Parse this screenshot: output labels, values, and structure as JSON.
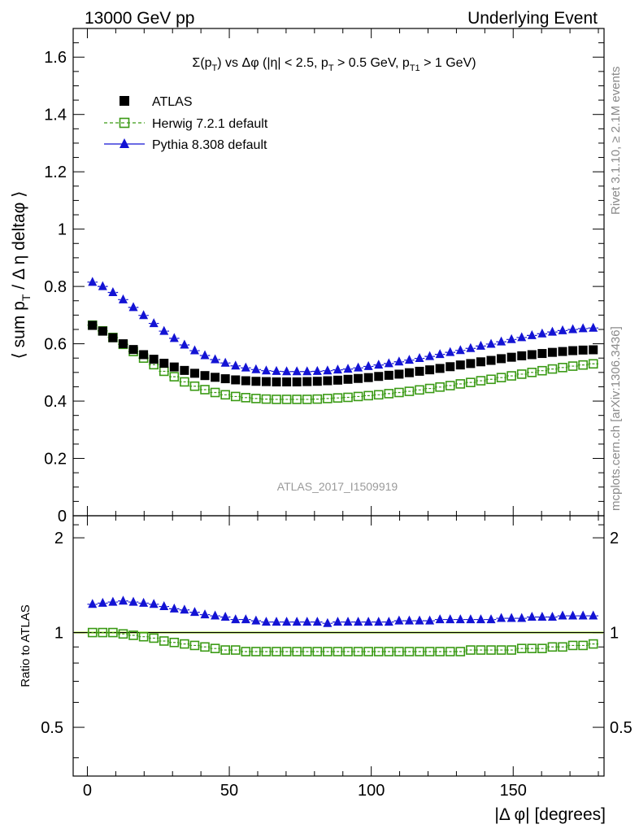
{
  "header": {
    "left": "13000 GeV pp",
    "right": "Underlying Event"
  },
  "side_labels": {
    "rivet": "Rivet 3.1.10, ≥ 2.1M events",
    "mcplots": "mcplots.cern.ch [arXiv:1306.3436]"
  },
  "watermark": "ATLAS_2017_I1509919",
  "chart_data": [
    {
      "type": "scatter",
      "title": "Σ(pT) vs Δφ (|η| < 2.5, pT > 0.5 GeV, pT1 > 1 GeV)",
      "ylabel": "⟨ sum pT / Δη deltaφ ⟩",
      "xlabel": "",
      "xlim": [
        -5,
        182
      ],
      "ylim": [
        0,
        1.7
      ],
      "yticks": [
        0,
        0.2,
        0.4,
        0.6,
        0.8,
        1,
        1.2,
        1.4,
        1.6
      ],
      "ytick_labels": [
        "0",
        "0.2",
        "0.4",
        "0.6",
        "0.8",
        "1",
        "1.2",
        "1.4",
        "1.6"
      ],
      "legend_position": "top-left",
      "x": [
        1.8,
        5.4,
        9.0,
        12.6,
        16.2,
        19.8,
        23.4,
        27.0,
        30.6,
        34.2,
        37.8,
        41.4,
        45.0,
        48.6,
        52.2,
        55.8,
        59.4,
        63.0,
        66.6,
        70.2,
        73.8,
        77.4,
        81.0,
        84.6,
        88.2,
        91.8,
        95.4,
        99.0,
        102.6,
        106.2,
        109.8,
        113.4,
        117.0,
        120.6,
        124.2,
        127.8,
        131.4,
        135.0,
        138.6,
        142.2,
        145.8,
        149.4,
        153.0,
        156.6,
        160.2,
        163.8,
        167.4,
        171.0,
        174.6,
        178.2
      ],
      "series": [
        {
          "name": "ATLAS",
          "color": "#000000",
          "marker": "filled-square",
          "values": [
            0.664,
            0.644,
            0.621,
            0.6,
            0.58,
            0.562,
            0.546,
            0.532,
            0.519,
            0.507,
            0.497,
            0.489,
            0.483,
            0.478,
            0.474,
            0.471,
            0.469,
            0.468,
            0.467,
            0.467,
            0.467,
            0.468,
            0.469,
            0.471,
            0.473,
            0.476,
            0.479,
            0.482,
            0.486,
            0.49,
            0.494,
            0.499,
            0.504,
            0.509,
            0.514,
            0.52,
            0.526,
            0.531,
            0.537,
            0.542,
            0.548,
            0.553,
            0.558,
            0.562,
            0.566,
            0.57,
            0.573,
            0.576,
            0.578,
            0.579
          ]
        },
        {
          "name": "Herwig 7.2.1 default",
          "color": "#3a9a14",
          "marker": "open-square",
          "values": [
            0.665,
            0.645,
            0.622,
            0.598,
            0.573,
            0.55,
            0.527,
            0.504,
            0.485,
            0.467,
            0.452,
            0.44,
            0.43,
            0.422,
            0.416,
            0.412,
            0.409,
            0.407,
            0.406,
            0.406,
            0.406,
            0.406,
            0.407,
            0.409,
            0.411,
            0.413,
            0.416,
            0.419,
            0.422,
            0.426,
            0.43,
            0.434,
            0.439,
            0.444,
            0.449,
            0.454,
            0.46,
            0.465,
            0.471,
            0.476,
            0.482,
            0.488,
            0.494,
            0.5,
            0.506,
            0.512,
            0.517,
            0.522,
            0.526,
            0.53
          ]
        },
        {
          "name": "Pythia 8.308 default",
          "color": "#1313d4",
          "marker": "filled-triangle",
          "values": [
            0.815,
            0.8,
            0.779,
            0.754,
            0.727,
            0.699,
            0.671,
            0.644,
            0.619,
            0.596,
            0.576,
            0.559,
            0.545,
            0.533,
            0.523,
            0.516,
            0.51,
            0.506,
            0.504,
            0.503,
            0.503,
            0.503,
            0.504,
            0.506,
            0.509,
            0.512,
            0.516,
            0.521,
            0.526,
            0.531,
            0.537,
            0.543,
            0.549,
            0.556,
            0.563,
            0.57,
            0.577,
            0.584,
            0.592,
            0.599,
            0.607,
            0.615,
            0.622,
            0.629,
            0.635,
            0.641,
            0.646,
            0.65,
            0.653,
            0.655
          ]
        }
      ]
    },
    {
      "type": "scatter",
      "title": "",
      "ylabel": "Ratio to ATLAS",
      "xlabel": "|Δ φ| [degrees]",
      "xlim": [
        -5,
        182
      ],
      "ylim": [
        0.35,
        2.35
      ],
      "yscale": "log",
      "yticks": [
        0.5,
        1,
        2
      ],
      "ytick_labels": [
        "0.5",
        "1",
        "2"
      ],
      "xticks": [
        0,
        50,
        100,
        150
      ],
      "xtick_labels": [
        "0",
        "50",
        "100",
        "150"
      ],
      "reference_band": {
        "value": 1,
        "color": "#c8f07a"
      },
      "x": [
        1.8,
        5.4,
        9.0,
        12.6,
        16.2,
        19.8,
        23.4,
        27.0,
        30.6,
        34.2,
        37.8,
        41.4,
        45.0,
        48.6,
        52.2,
        55.8,
        59.4,
        63.0,
        66.6,
        70.2,
        73.8,
        77.4,
        81.0,
        84.6,
        88.2,
        91.8,
        95.4,
        99.0,
        102.6,
        106.2,
        109.8,
        113.4,
        117.0,
        120.6,
        124.2,
        127.8,
        131.4,
        135.0,
        138.6,
        142.2,
        145.8,
        149.4,
        153.0,
        156.6,
        160.2,
        163.8,
        167.4,
        171.0,
        174.6,
        178.2
      ],
      "series": [
        {
          "name": "Herwig 7.2.1 default",
          "color": "#3a9a14",
          "marker": "open-square",
          "values": [
            1.0,
            1.0,
            1.0,
            0.99,
            0.98,
            0.97,
            0.96,
            0.94,
            0.93,
            0.92,
            0.91,
            0.9,
            0.89,
            0.88,
            0.88,
            0.87,
            0.87,
            0.87,
            0.87,
            0.87,
            0.87,
            0.87,
            0.87,
            0.87,
            0.87,
            0.87,
            0.87,
            0.87,
            0.87,
            0.87,
            0.87,
            0.87,
            0.87,
            0.87,
            0.87,
            0.87,
            0.87,
            0.88,
            0.88,
            0.88,
            0.88,
            0.88,
            0.89,
            0.89,
            0.89,
            0.9,
            0.9,
            0.91,
            0.91,
            0.92
          ]
        },
        {
          "name": "Pythia 8.308 default",
          "color": "#1313d4",
          "marker": "filled-triangle",
          "values": [
            1.23,
            1.24,
            1.25,
            1.26,
            1.25,
            1.24,
            1.23,
            1.21,
            1.19,
            1.18,
            1.16,
            1.14,
            1.13,
            1.12,
            1.1,
            1.1,
            1.09,
            1.08,
            1.08,
            1.08,
            1.08,
            1.08,
            1.08,
            1.07,
            1.08,
            1.08,
            1.08,
            1.08,
            1.08,
            1.08,
            1.09,
            1.09,
            1.09,
            1.09,
            1.1,
            1.1,
            1.1,
            1.1,
            1.1,
            1.1,
            1.11,
            1.11,
            1.11,
            1.12,
            1.12,
            1.12,
            1.13,
            1.13,
            1.13,
            1.13
          ]
        }
      ]
    }
  ]
}
